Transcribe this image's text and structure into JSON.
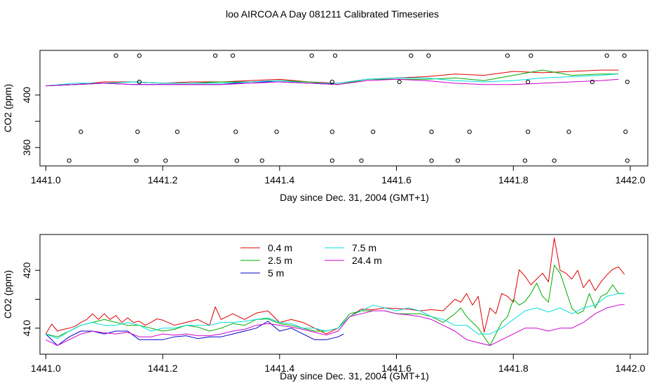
{
  "figure": {
    "title": "loo AIRCOA A  Day 081211  Calibrated Timeseries"
  },
  "chart_data": [
    {
      "type": "line",
      "panel": "top",
      "xlabel": "Day since Dec. 31, 2004 (GMT+1)",
      "ylabel": "CO2 (ppm)",
      "xlim": [
        1440.99,
        1442.03
      ],
      "ylim": [
        346,
        434
      ],
      "xticks": [
        1441.0,
        1441.2,
        1441.4,
        1441.6,
        1441.8,
        1442.0
      ],
      "xtick_labels": [
        "1441.0",
        "1441.2",
        "1441.4",
        "1441.6",
        "1441.8",
        "1442.0"
      ],
      "yticks": [
        360,
        380,
        400
      ],
      "ytick_labels": [
        "360",
        "",
        "400"
      ],
      "grid": false,
      "calibration_points": [
        {
          "x": 1441.04,
          "y": 350
        },
        {
          "x": 1441.06,
          "y": 372
        },
        {
          "x": 1441.12,
          "y": 430
        },
        {
          "x": 1441.155,
          "y": 350
        },
        {
          "x": 1441.157,
          "y": 372
        },
        {
          "x": 1441.16,
          "y": 410
        },
        {
          "x": 1441.16,
          "y": 430
        },
        {
          "x": 1441.205,
          "y": 350
        },
        {
          "x": 1441.225,
          "y": 372
        },
        {
          "x": 1441.29,
          "y": 430
        },
        {
          "x": 1441.32,
          "y": 430
        },
        {
          "x": 1441.325,
          "y": 372
        },
        {
          "x": 1441.327,
          "y": 350
        },
        {
          "x": 1441.37,
          "y": 350
        },
        {
          "x": 1441.395,
          "y": 372
        },
        {
          "x": 1441.455,
          "y": 430
        },
        {
          "x": 1441.49,
          "y": 372
        },
        {
          "x": 1441.49,
          "y": 350
        },
        {
          "x": 1441.49,
          "y": 410
        },
        {
          "x": 1441.495,
          "y": 430
        },
        {
          "x": 1441.54,
          "y": 350
        },
        {
          "x": 1441.56,
          "y": 372
        },
        {
          "x": 1441.605,
          "y": 410
        },
        {
          "x": 1441.625,
          "y": 430
        },
        {
          "x": 1441.655,
          "y": 430
        },
        {
          "x": 1441.66,
          "y": 372
        },
        {
          "x": 1441.66,
          "y": 350
        },
        {
          "x": 1441.705,
          "y": 350
        },
        {
          "x": 1441.725,
          "y": 372
        },
        {
          "x": 1441.79,
          "y": 430
        },
        {
          "x": 1441.82,
          "y": 350
        },
        {
          "x": 1441.825,
          "y": 372
        },
        {
          "x": 1441.825,
          "y": 410
        },
        {
          "x": 1441.83,
          "y": 430
        },
        {
          "x": 1441.87,
          "y": 350
        },
        {
          "x": 1441.895,
          "y": 372
        },
        {
          "x": 1441.935,
          "y": 410
        },
        {
          "x": 1441.96,
          "y": 430
        },
        {
          "x": 1441.99,
          "y": 430
        },
        {
          "x": 1441.992,
          "y": 372
        },
        {
          "x": 1441.995,
          "y": 410
        },
        {
          "x": 1441.995,
          "y": 350
        }
      ],
      "series": [
        {
          "name": "0.4 m",
          "color": "#dd0000",
          "x": [
            1441.0,
            1441.05,
            1441.1,
            1441.15,
            1441.2,
            1441.25,
            1441.3,
            1441.35,
            1441.4,
            1441.45,
            1441.5,
            1441.55,
            1441.6,
            1441.65,
            1441.7,
            1441.75,
            1441.8,
            1441.85,
            1441.9,
            1441.95,
            1441.98
          ],
          "values": [
            407,
            408,
            410,
            410,
            409,
            410,
            410,
            411,
            412,
            410,
            409,
            412,
            413,
            414,
            416,
            415,
            418,
            417,
            418,
            419,
            419
          ]
        },
        {
          "name": "2.5 m",
          "color": "#00aa00",
          "x": [
            1441.0,
            1441.05,
            1441.1,
            1441.15,
            1441.2,
            1441.25,
            1441.3,
            1441.35,
            1441.4,
            1441.45,
            1441.5,
            1441.55,
            1441.6,
            1441.65,
            1441.7,
            1441.75,
            1441.8,
            1441.85,
            1441.9,
            1441.95,
            1441.98
          ],
          "values": [
            407,
            408,
            409,
            410,
            409,
            409,
            410,
            410,
            411,
            410,
            408,
            412,
            412,
            412,
            413,
            411,
            415,
            419,
            415,
            416,
            416
          ]
        },
        {
          "name": "5 m",
          "color": "#0000cc",
          "x": [
            1441.0,
            1441.05,
            1441.1,
            1441.15,
            1441.2,
            1441.25,
            1441.3,
            1441.35,
            1441.4,
            1441.45,
            1441.5
          ],
          "values": [
            407,
            408,
            409,
            408,
            408,
            408,
            408,
            410,
            410,
            409,
            408
          ]
        },
        {
          "name": "7.5 m",
          "color": "#00dddd",
          "x": [
            1441.0,
            1441.05,
            1441.1,
            1441.15,
            1441.2,
            1441.25,
            1441.3,
            1441.35,
            1441.4,
            1441.45,
            1441.5,
            1441.55,
            1441.6,
            1441.65,
            1441.7,
            1441.75,
            1441.8,
            1441.85,
            1441.9,
            1441.95,
            1441.98
          ],
          "values": [
            407,
            409,
            409,
            410,
            409,
            409,
            409,
            410,
            411,
            409,
            409,
            412,
            413,
            413,
            411,
            410,
            411,
            413,
            414,
            415,
            416
          ]
        },
        {
          "name": "24.4 m",
          "color": "#cc00cc",
          "x": [
            1441.0,
            1441.05,
            1441.1,
            1441.15,
            1441.2,
            1441.25,
            1441.3,
            1441.35,
            1441.4,
            1441.45,
            1441.5,
            1441.55,
            1441.6,
            1441.65,
            1441.7,
            1441.75,
            1441.8,
            1441.85,
            1441.9,
            1441.95,
            1441.98
          ],
          "values": [
            407,
            408,
            409,
            408,
            408,
            408,
            408,
            409,
            410,
            409,
            408,
            411,
            412,
            411,
            409,
            408,
            408,
            409,
            410,
            411,
            412
          ]
        }
      ]
    },
    {
      "type": "line",
      "panel": "bottom",
      "xlabel": "Day since Dec. 31, 2004 (GMT+1)",
      "ylabel": "CO2 (ppm)",
      "xlim": [
        1440.99,
        1442.03
      ],
      "ylim": [
        405.5,
        426.2
      ],
      "xticks": [
        1441.0,
        1441.2,
        1441.4,
        1441.6,
        1441.8,
        1442.0
      ],
      "xtick_labels": [
        "1441.0",
        "1441.2",
        "1441.4",
        "1441.6",
        "1441.8",
        "1442.0"
      ],
      "yticks": [
        410,
        415,
        420
      ],
      "ytick_labels": [
        "410",
        "",
        "420"
      ],
      "grid": false,
      "legend": {
        "placement": "top-center",
        "columns": 2
      },
      "series": [
        {
          "name": "0.4 m",
          "color": "#dd0000",
          "x": [
            1441.0,
            1441.01,
            1441.02,
            1441.03,
            1441.04,
            1441.05,
            1441.06,
            1441.07,
            1441.08,
            1441.09,
            1441.1,
            1441.11,
            1441.12,
            1441.13,
            1441.14,
            1441.15,
            1441.16,
            1441.17,
            1441.18,
            1441.19,
            1441.2,
            1441.22,
            1441.24,
            1441.26,
            1441.28,
            1441.29,
            1441.3,
            1441.32,
            1441.34,
            1441.36,
            1441.38,
            1441.4,
            1441.42,
            1441.44,
            1441.46,
            1441.48,
            1441.5,
            1441.52,
            1441.54,
            1441.56,
            1441.58,
            1441.6,
            1441.62,
            1441.64,
            1441.66,
            1441.68,
            1441.7,
            1441.71,
            1441.72,
            1441.73,
            1441.74,
            1441.75,
            1441.76,
            1441.77,
            1441.78,
            1441.79,
            1441.8,
            1441.81,
            1441.82,
            1441.83,
            1441.84,
            1441.85,
            1441.86,
            1441.87,
            1441.88,
            1441.89,
            1441.9,
            1441.91,
            1441.92,
            1441.93,
            1441.94,
            1441.95,
            1441.96,
            1441.97,
            1441.98,
            1441.99
          ],
          "values": [
            409,
            410.7,
            409.5,
            409.8,
            410,
            410.3,
            411,
            411.5,
            412.5,
            411.5,
            412.5,
            411.5,
            412.2,
            411,
            411.8,
            411,
            411.2,
            410.5,
            411,
            411.6,
            411.4,
            410.5,
            411,
            411.5,
            410.5,
            413.7,
            411.5,
            412.5,
            411.5,
            412.6,
            413,
            411,
            411.5,
            411,
            410,
            409,
            410,
            412,
            413.3,
            413.2,
            413.5,
            413.4,
            413.3,
            413,
            413.2,
            413,
            415,
            414.5,
            416,
            414,
            415.5,
            409.3,
            413.5,
            412.5,
            416,
            415.5,
            414.5,
            420.1,
            419,
            417.5,
            418.5,
            419.5,
            418,
            425.6,
            420,
            419.5,
            418.5,
            420,
            417,
            418.4,
            416.5,
            418,
            419.2,
            420.2,
            420.6,
            419.3
          ]
        },
        {
          "name": "2.5 m",
          "color": "#00aa00",
          "x": [
            1441.0,
            1441.02,
            1441.04,
            1441.06,
            1441.08,
            1441.1,
            1441.12,
            1441.14,
            1441.16,
            1441.18,
            1441.2,
            1441.22,
            1441.24,
            1441.26,
            1441.28,
            1441.3,
            1441.32,
            1441.34,
            1441.36,
            1441.38,
            1441.4,
            1441.42,
            1441.44,
            1441.46,
            1441.48,
            1441.5,
            1441.52,
            1441.54,
            1441.56,
            1441.58,
            1441.6,
            1441.62,
            1441.64,
            1441.66,
            1441.68,
            1441.7,
            1441.71,
            1441.72,
            1441.73,
            1441.74,
            1441.75,
            1441.76,
            1441.77,
            1441.78,
            1441.79,
            1441.8,
            1441.81,
            1441.82,
            1441.83,
            1441.84,
            1441.85,
            1441.86,
            1441.87,
            1441.88,
            1441.89,
            1441.9,
            1441.91,
            1441.92,
            1441.93,
            1441.94,
            1441.95,
            1441.96,
            1441.97,
            1441.98,
            1441.99
          ],
          "values": [
            409,
            408.5,
            409.5,
            410.5,
            411,
            411.5,
            411,
            410.5,
            410.5,
            410,
            409.5,
            409.8,
            410.5,
            410.2,
            409.5,
            410,
            410.8,
            410.5,
            411.5,
            411.6,
            410.8,
            410.5,
            410,
            409.5,
            409.5,
            410,
            412.5,
            413,
            413,
            413,
            412.5,
            412.5,
            412.5,
            412,
            411,
            412.5,
            413.5,
            412,
            411,
            410,
            408.5,
            407,
            409,
            411,
            412,
            415,
            414,
            414.6,
            416,
            417.8,
            415.5,
            414.5,
            420.9,
            419.5,
            416.5,
            413.5,
            412.5,
            413,
            416,
            413.5,
            415.5,
            416,
            417.5,
            416,
            416
          ]
        },
        {
          "name": "5 m",
          "color": "#0000cc",
          "x": [
            1441.0,
            1441.02,
            1441.04,
            1441.06,
            1441.08,
            1441.1,
            1441.12,
            1441.14,
            1441.16,
            1441.18,
            1441.2,
            1441.22,
            1441.24,
            1441.26,
            1441.28,
            1441.3,
            1441.32,
            1441.34,
            1441.36,
            1441.38,
            1441.4,
            1441.42,
            1441.44,
            1441.46,
            1441.48,
            1441.5,
            1441.51
          ],
          "values": [
            409,
            407,
            408.5,
            409.5,
            409.5,
            409,
            409.5,
            409.5,
            408,
            408,
            408,
            408.5,
            408.7,
            408.2,
            408.5,
            408.5,
            409,
            409.5,
            410,
            411.2,
            409.5,
            410,
            409,
            408,
            408,
            408.5,
            409
          ]
        },
        {
          "name": "7.5 m",
          "color": "#00dddd",
          "x": [
            1441.0,
            1441.02,
            1441.04,
            1441.06,
            1441.08,
            1441.1,
            1441.12,
            1441.14,
            1441.16,
            1441.18,
            1441.2,
            1441.22,
            1441.24,
            1441.26,
            1441.28,
            1441.3,
            1441.32,
            1441.34,
            1441.36,
            1441.38,
            1441.4,
            1441.42,
            1441.44,
            1441.46,
            1441.48,
            1441.5,
            1441.52,
            1441.54,
            1441.56,
            1441.58,
            1441.6,
            1441.62,
            1441.64,
            1441.66,
            1441.68,
            1441.7,
            1441.72,
            1441.74,
            1441.76,
            1441.78,
            1441.8,
            1441.82,
            1441.84,
            1441.86,
            1441.88,
            1441.9,
            1441.92,
            1441.94,
            1441.96,
            1441.98,
            1441.99
          ],
          "values": [
            409,
            408.2,
            409.5,
            410.5,
            411,
            410.5,
            410.5,
            411,
            410.5,
            409.5,
            410,
            410,
            410.5,
            410.5,
            410.5,
            411,
            411,
            411.2,
            411.5,
            411.8,
            411,
            410.8,
            410,
            410,
            409.5,
            410,
            412,
            413,
            414,
            413.5,
            413,
            413.5,
            413,
            412,
            411.5,
            410.5,
            410.5,
            409,
            409,
            410,
            411.5,
            413,
            413.5,
            412.8,
            413.5,
            412.5,
            413.5,
            414,
            415.5,
            416,
            416
          ]
        },
        {
          "name": "24.4 m",
          "color": "#cc00cc",
          "x": [
            1441.0,
            1441.02,
            1441.04,
            1441.06,
            1441.08,
            1441.1,
            1441.12,
            1441.14,
            1441.16,
            1441.18,
            1441.2,
            1441.22,
            1441.24,
            1441.26,
            1441.28,
            1441.3,
            1441.32,
            1441.34,
            1441.36,
            1441.38,
            1441.4,
            1441.42,
            1441.44,
            1441.46,
            1441.48,
            1441.5,
            1441.52,
            1441.54,
            1441.56,
            1441.58,
            1441.6,
            1441.62,
            1441.64,
            1441.66,
            1441.68,
            1441.7,
            1441.72,
            1441.74,
            1441.76,
            1441.78,
            1441.8,
            1441.82,
            1441.84,
            1441.86,
            1441.88,
            1441.9,
            1441.92,
            1441.94,
            1441.96,
            1441.98,
            1441.99
          ],
          "values": [
            408,
            407,
            408,
            409,
            409.5,
            409.2,
            409,
            409.3,
            408.5,
            408.5,
            409,
            408.8,
            409,
            408.7,
            408.7,
            409,
            409.5,
            409.8,
            410.5,
            410.8,
            410.5,
            410.2,
            409.8,
            409.3,
            408.8,
            409.5,
            412,
            412.5,
            413,
            413,
            412.5,
            412.3,
            412,
            411.5,
            410.5,
            409.5,
            408,
            407.5,
            407,
            408,
            409,
            410,
            410,
            409.5,
            410,
            410,
            411,
            412.5,
            413.5,
            414,
            414.1
          ]
        }
      ]
    }
  ]
}
